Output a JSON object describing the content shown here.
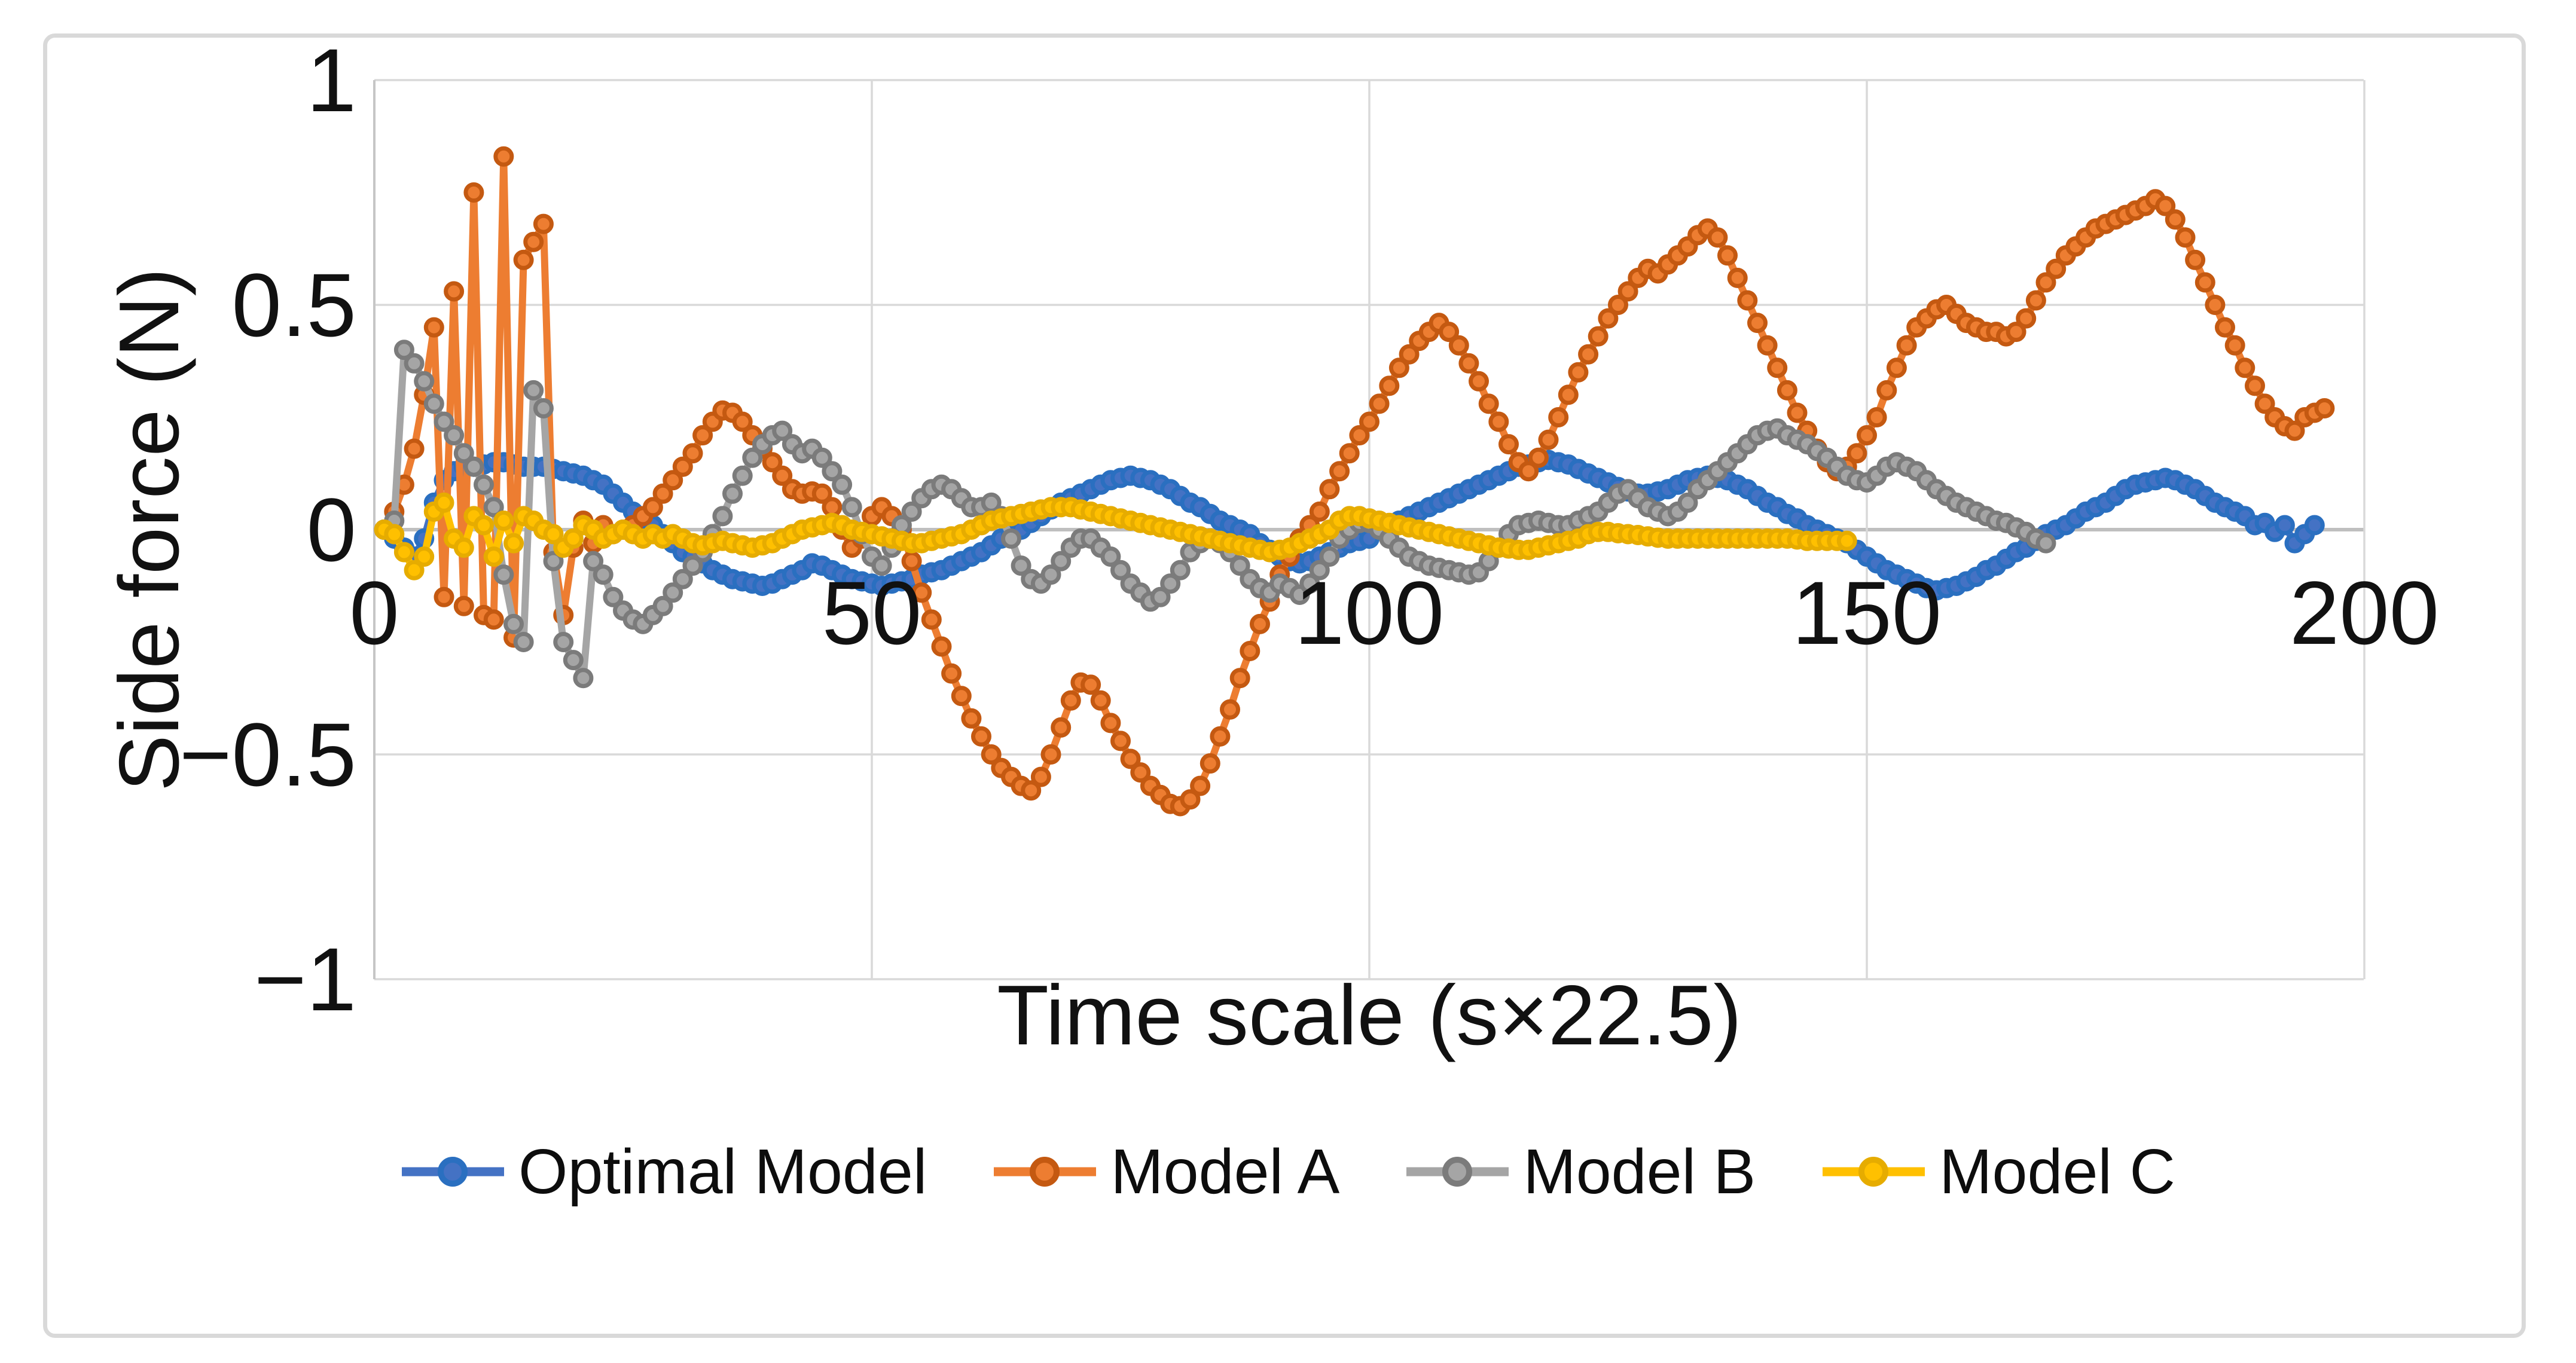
{
  "figure": {
    "background": "#ffffff",
    "border_color": "#D9D9D9",
    "gridline_color": "#D9D9D9",
    "axis_line_color": "#BFBFBF",
    "text_color": "#111111",
    "x_tick_labels": [
      "0",
      "50",
      "100",
      "150",
      "200"
    ],
    "y_tick_labels": [
      "1",
      "0.5",
      "0",
      "-0.5",
      "-1"
    ]
  },
  "chart_data": {
    "type": "line",
    "title": "",
    "xlabel": "Time scale (s×22.5)",
    "ylabel": "Side force (N)",
    "xlim": [
      0,
      202
    ],
    "ylim": [
      -1,
      1
    ],
    "x_ticks": [
      0,
      50,
      100,
      150,
      200
    ],
    "y_ticks": [
      1,
      0.5,
      0,
      -0.5,
      -1
    ],
    "grid": true,
    "legend_position": "bottom",
    "marker": "circle",
    "series": [
      {
        "name": "Optimal Model",
        "color": "#4472C4",
        "marker_stroke": "#2A6FC0",
        "x_start": 1,
        "x_step": 1,
        "values": [
          0,
          -0.02,
          -0.04,
          -0.06,
          -0.02,
          0.06,
          0.11,
          0.13,
          0.14,
          0.14,
          0.145,
          0.15,
          0.15,
          0.145,
          0.14,
          0.14,
          0.14,
          0.135,
          0.13,
          0.125,
          0.12,
          0.11,
          0.1,
          0.08,
          0.06,
          0.04,
          0.02,
          0.01,
          -0.01,
          -0.03,
          -0.05,
          -0.06,
          -0.075,
          -0.09,
          -0.1,
          -0.11,
          -0.115,
          -0.12,
          -0.125,
          -0.12,
          -0.11,
          -0.1,
          -0.09,
          -0.075,
          -0.08,
          -0.09,
          -0.1,
          -0.11,
          -0.115,
          -0.12,
          -0.125,
          -0.12,
          -0.115,
          -0.11,
          -0.1,
          -0.095,
          -0.09,
          -0.08,
          -0.07,
          -0.06,
          -0.05,
          -0.035,
          -0.02,
          -0.01,
          0,
          0.015,
          0.03,
          0.045,
          0.06,
          0.07,
          0.08,
          0.09,
          0.1,
          0.11,
          0.115,
          0.12,
          0.115,
          0.11,
          0.1,
          0.09,
          0.075,
          0.06,
          0.05,
          0.035,
          0.02,
          0.01,
          0,
          -0.01,
          -0.03,
          -0.045,
          -0.06,
          -0.07,
          -0.075,
          -0.07,
          -0.06,
          -0.05,
          -0.04,
          -0.03,
          -0.025,
          -0.02,
          0,
          0.01,
          0.02,
          0.03,
          0.04,
          0.05,
          0.06,
          0.07,
          0.08,
          0.09,
          0.1,
          0.11,
          0.12,
          0.13,
          0.14,
          0.145,
          0.15,
          0.155,
          0.15,
          0.145,
          0.135,
          0.125,
          0.115,
          0.105,
          0.095,
          0.085,
          0.08,
          0.08,
          0.085,
          0.09,
          0.1,
          0.11,
          0.115,
          0.12,
          0.115,
          0.11,
          0.1,
          0.09,
          0.075,
          0.06,
          0.05,
          0.035,
          0.025,
          0.01,
          0,
          -0.01,
          -0.02,
          -0.03,
          -0.045,
          -0.06,
          -0.075,
          -0.09,
          -0.1,
          -0.11,
          -0.12,
          -0.13,
          -0.135,
          -0.13,
          -0.125,
          -0.115,
          -0.105,
          -0.09,
          -0.08,
          -0.065,
          -0.05,
          -0.04,
          -0.025,
          -0.01,
          0,
          0.01,
          0.025,
          0.04,
          0.05,
          0.06,
          0.075,
          0.09,
          0.1,
          0.105,
          0.11,
          0.115,
          0.11,
          0.1,
          0.09,
          0.075,
          0.06,
          0.05,
          0.04,
          0.03,
          0.01,
          0.015,
          -0.005,
          0.01,
          -0.03,
          -0.01,
          0.01
        ]
      },
      {
        "name": "Model A",
        "color": "#ED7D31",
        "marker_stroke": "#C45911",
        "x_start": 1,
        "x_step": 1,
        "values": [
          0,
          0.04,
          0.1,
          0.18,
          0.3,
          0.45,
          -0.15,
          0.53,
          -0.17,
          0.75,
          -0.19,
          -0.2,
          0.83,
          -0.24,
          0.6,
          0.64,
          0.68,
          -0.05,
          -0.19,
          -0.04,
          0.02,
          -0.03,
          0.01,
          -0.01,
          0,
          0.01,
          0.03,
          0.05,
          0.08,
          0.11,
          0.14,
          0.17,
          0.21,
          0.24,
          0.265,
          0.26,
          0.24,
          0.21,
          0.18,
          0.15,
          0.12,
          0.09,
          0.08,
          0.085,
          0.08,
          0.05,
          0,
          -0.04,
          -0.02,
          0.03,
          0.05,
          0.03,
          0,
          -0.07,
          -0.14,
          -0.2,
          -0.26,
          -0.32,
          -0.37,
          -0.42,
          -0.46,
          -0.5,
          -0.53,
          -0.55,
          -0.57,
          -0.58,
          -0.55,
          -0.5,
          -0.44,
          -0.38,
          -0.34,
          -0.345,
          -0.38,
          -0.43,
          -0.47,
          -0.51,
          -0.54,
          -0.57,
          -0.59,
          -0.61,
          -0.615,
          -0.6,
          -0.57,
          -0.52,
          -0.46,
          -0.4,
          -0.33,
          -0.27,
          -0.21,
          -0.16,
          -0.1,
          -0.06,
          -0.02,
          0.01,
          0.04,
          0.09,
          0.13,
          0.17,
          0.21,
          0.24,
          0.28,
          0.32,
          0.36,
          0.39,
          0.42,
          0.44,
          0.46,
          0.44,
          0.41,
          0.37,
          0.33,
          0.28,
          0.24,
          0.19,
          0.15,
          0.13,
          0.16,
          0.2,
          0.25,
          0.3,
          0.35,
          0.39,
          0.43,
          0.47,
          0.5,
          0.53,
          0.56,
          0.58,
          0.57,
          0.59,
          0.61,
          0.63,
          0.655,
          0.67,
          0.65,
          0.61,
          0.56,
          0.51,
          0.46,
          0.41,
          0.36,
          0.31,
          0.26,
          0.22,
          0.18,
          0.15,
          0.13,
          0.14,
          0.17,
          0.21,
          0.25,
          0.31,
          0.36,
          0.41,
          0.45,
          0.47,
          0.49,
          0.5,
          0.48,
          0.46,
          0.45,
          0.44,
          0.44,
          0.43,
          0.44,
          0.47,
          0.51,
          0.55,
          0.58,
          0.61,
          0.63,
          0.65,
          0.67,
          0.68,
          0.69,
          0.7,
          0.71,
          0.72,
          0.735,
          0.72,
          0.69,
          0.65,
          0.6,
          0.55,
          0.5,
          0.45,
          0.41,
          0.36,
          0.32,
          0.28,
          0.25,
          0.23,
          0.22,
          0.25,
          0.26,
          0.27
        ]
      },
      {
        "name": "Model B",
        "color": "#A5A5A5",
        "marker_stroke": "#7B7B7B",
        "x_start": 1,
        "x_step": 1,
        "values": [
          0,
          0.02,
          0.4,
          0.37,
          0.33,
          0.28,
          0.24,
          0.21,
          0.17,
          0.14,
          0.1,
          0.05,
          -0.1,
          -0.21,
          -0.25,
          0.31,
          0.27,
          -0.07,
          -0.25,
          -0.29,
          -0.33,
          -0.07,
          -0.1,
          -0.15,
          -0.18,
          -0.2,
          -0.21,
          -0.19,
          -0.17,
          -0.14,
          -0.11,
          -0.08,
          -0.05,
          -0.01,
          0.03,
          0.08,
          0.12,
          0.16,
          0.19,
          0.21,
          0.22,
          0.19,
          0.17,
          0.18,
          0.16,
          0.13,
          0.1,
          0.05,
          -0.01,
          -0.06,
          -0.08,
          -0.04,
          0.01,
          0.04,
          0.07,
          0.09,
          0.1,
          0.09,
          0.07,
          0.05,
          0.05,
          0.06,
          0.03,
          -0.02,
          -0.08,
          -0.11,
          -0.12,
          -0.1,
          -0.07,
          -0.04,
          -0.02,
          -0.02,
          -0.04,
          -0.06,
          -0.09,
          -0.12,
          -0.14,
          -0.16,
          -0.15,
          -0.12,
          -0.09,
          -0.05,
          -0.03,
          -0.02,
          -0.03,
          -0.05,
          -0.08,
          -0.11,
          -0.13,
          -0.14,
          -0.12,
          -0.13,
          -0.145,
          -0.12,
          -0.09,
          -0.06,
          -0.02,
          0,
          0.015,
          0.015,
          0,
          -0.02,
          -0.04,
          -0.06,
          -0.07,
          -0.08,
          -0.085,
          -0.09,
          -0.095,
          -0.1,
          -0.095,
          -0.07,
          -0.04,
          -0.01,
          0.01,
          0.015,
          0.02,
          0.015,
          0.01,
          0.01,
          0.02,
          0.03,
          0.04,
          0.06,
          0.08,
          0.09,
          0.07,
          0.05,
          0.04,
          0.03,
          0.04,
          0.06,
          0.09,
          0.11,
          0.13,
          0.15,
          0.17,
          0.19,
          0.21,
          0.22,
          0.225,
          0.21,
          0.2,
          0.19,
          0.175,
          0.16,
          0.14,
          0.12,
          0.11,
          0.105,
          0.12,
          0.14,
          0.15,
          0.14,
          0.13,
          0.11,
          0.09,
          0.075,
          0.06,
          0.05,
          0.04,
          0.03,
          0.02,
          0.015,
          0.005,
          -0.005,
          -0.02,
          -0.03
        ]
      },
      {
        "name": "Model C",
        "color": "#FFC000",
        "marker_stroke": "#E6AC00",
        "x_start": 1,
        "x_step": 1,
        "values": [
          0,
          -0.01,
          -0.05,
          -0.09,
          -0.06,
          0.04,
          0.06,
          -0.02,
          -0.04,
          0.03,
          0.01,
          -0.06,
          0.02,
          -0.03,
          0.03,
          0.02,
          0,
          -0.01,
          -0.04,
          -0.02,
          0.01,
          0,
          -0.02,
          -0.01,
          0,
          -0.01,
          -0.02,
          -0.01,
          -0.02,
          -0.01,
          -0.02,
          -0.03,
          -0.035,
          -0.03,
          -0.025,
          -0.03,
          -0.035,
          -0.04,
          -0.035,
          -0.03,
          -0.02,
          -0.01,
          0,
          0.005,
          0.01,
          0.015,
          0.01,
          0,
          -0.005,
          -0.01,
          -0.015,
          -0.02,
          -0.025,
          -0.03,
          -0.03,
          -0.025,
          -0.02,
          -0.015,
          -0.01,
          0,
          0.01,
          0.02,
          0.025,
          0.03,
          0.035,
          0.04,
          0.045,
          0.05,
          0.05,
          0.05,
          0.045,
          0.04,
          0.035,
          0.03,
          0.025,
          0.02,
          0.015,
          0.01,
          0.005,
          0,
          -0.005,
          -0.01,
          -0.015,
          -0.02,
          -0.025,
          -0.03,
          -0.035,
          -0.04,
          -0.045,
          -0.05,
          -0.045,
          -0.04,
          -0.03,
          -0.02,
          -0.01,
          0,
          0.02,
          0.03,
          0.03,
          0.025,
          0.02,
          0.015,
          0.01,
          0.005,
          0,
          -0.005,
          -0.01,
          -0.015,
          -0.02,
          -0.025,
          -0.03,
          -0.035,
          -0.04,
          -0.042,
          -0.045,
          -0.045,
          -0.04,
          -0.035,
          -0.03,
          -0.025,
          -0.02,
          -0.01,
          -0.005,
          -0.005,
          -0.008,
          -0.01,
          -0.012,
          -0.015,
          -0.018,
          -0.02,
          -0.02,
          -0.02,
          -0.02,
          -0.02,
          -0.02,
          -0.02,
          -0.02,
          -0.02,
          -0.02,
          -0.02,
          -0.02,
          -0.02,
          -0.022,
          -0.025,
          -0.025,
          -0.025,
          -0.025,
          -0.025
        ]
      }
    ]
  }
}
